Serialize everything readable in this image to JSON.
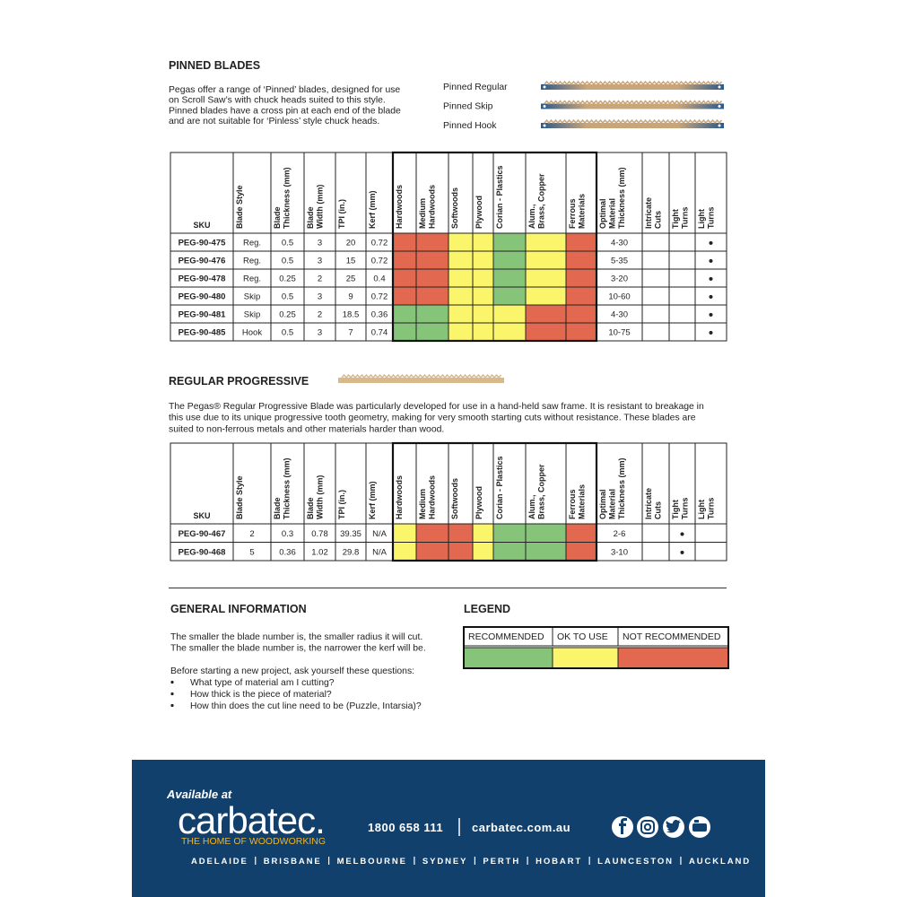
{
  "pinned": {
    "title": "PINNED BLADES",
    "text": [
      "Pegas offer a range of ‘Pinned’ blades, designed for use",
      "on Scroll Saw’s with chuck heads suited to this style.",
      "Pinned blades have a cross pin at each end of the blade",
      "and are not suitable for ‘Pinless’ style chuck heads."
    ],
    "blades": [
      "Pinned Regular",
      "Pinned Skip",
      "Pinned Hook"
    ]
  },
  "table1": {
    "header": [
      [
        "SKU"
      ],
      [
        "Blade Style"
      ],
      [
        "Blade",
        "Thickness (mm)"
      ],
      [
        "Blade",
        "Width (mm)"
      ],
      [
        "TPI (in.)"
      ],
      [
        "Kerf (mm)"
      ],
      [
        "Hardwoods"
      ],
      [
        "Medium",
        "Hardwoods"
      ],
      [
        "Softwoods"
      ],
      [
        "Plywood"
      ],
      [
        "Corian - Plastics"
      ],
      [
        "Alum.,",
        "Brass, Copper"
      ],
      [
        "Ferrous",
        "Materials"
      ],
      [
        "Optimal",
        "Material",
        "Thickness (mm)"
      ],
      [
        "Intricate",
        "Cuts"
      ],
      [
        "Tight",
        "Turns"
      ],
      [
        "Light",
        "Turns"
      ]
    ],
    "rows": [
      {
        "cells": [
          "PEG-90-475",
          "Reg.",
          0.5,
          3,
          20,
          0.72
        ],
        "ratings": [
          "#e2694f",
          "#e2694f",
          "#fbf56b",
          "#fbf56b",
          "#86c47a",
          "#fbf56b",
          "#e2694f"
        ],
        "more": [
          "4-30",
          null,
          null,
          "●"
        ]
      },
      {
        "cells": [
          "PEG-90-476",
          "Reg.",
          0.5,
          3,
          15,
          0.72
        ],
        "ratings": [
          "#e2694f",
          "#e2694f",
          "#fbf56b",
          "#fbf56b",
          "#86c47a",
          "#fbf56b",
          "#e2694f"
        ],
        "more": [
          "5-35",
          null,
          null,
          "●"
        ]
      },
      {
        "cells": [
          "PEG-90-478",
          "Reg.",
          0.25,
          2,
          25,
          0.4
        ],
        "ratings": [
          "#e2694f",
          "#e2694f",
          "#fbf56b",
          "#fbf56b",
          "#86c47a",
          "#fbf56b",
          "#e2694f"
        ],
        "more": [
          "3-20",
          null,
          null,
          "●"
        ]
      },
      {
        "cells": [
          "PEG-90-480",
          "Skip",
          0.5,
          3,
          9,
          0.72
        ],
        "ratings": [
          "#e2694f",
          "#e2694f",
          "#fbf56b",
          "#fbf56b",
          "#86c47a",
          "#fbf56b",
          "#e2694f"
        ],
        "more": [
          "10-60",
          null,
          null,
          "●"
        ]
      },
      {
        "cells": [
          "PEG-90-481",
          "Skip",
          0.25,
          2,
          18.5,
          0.36
        ],
        "ratings": [
          "#86c47a",
          "#86c47a",
          "#fbf56b",
          "#fbf56b",
          "#fbf56b",
          "#e2694f",
          "#e2694f"
        ],
        "more": [
          "4-30",
          null,
          null,
          "●"
        ]
      },
      {
        "cells": [
          "PEG-90-485",
          "Hook",
          0.5,
          3,
          7,
          0.74
        ],
        "ratings": [
          "#86c47a",
          "#86c47a",
          "#fbf56b",
          "#fbf56b",
          "#fbf56b",
          "#e2694f",
          "#e2694f"
        ],
        "more": [
          "10-75",
          null,
          null,
          "●"
        ]
      }
    ]
  },
  "progressive": {
    "title": "REGULAR PROGRESSIVE",
    "text": [
      "The Pegas® Regular Progressive Blade was particularly developed for use in a hand-held saw frame. It is resistant to breakage in",
      "this use due to its unique progressive tooth geometry, making for very smooth starting cuts without resistance. These blades are",
      "suited to non-ferrous metals and other materials harder than wood."
    ]
  },
  "table2": {
    "header": [
      [
        "SKU"
      ],
      [
        "Blade Style"
      ],
      [
        "Blade",
        "Thickness (mm)"
      ],
      [
        "Blade",
        "Width (mm)"
      ],
      [
        "TPI (in.)"
      ],
      [
        "Kerf (mm)"
      ],
      [
        "Hardwoods"
      ],
      [
        "Medium",
        "Hardwoods"
      ],
      [
        "Softwoods"
      ],
      [
        "Plywood"
      ],
      [
        "Corian - Plastics"
      ],
      [
        "Alum.,",
        "Brass, Copper"
      ],
      [
        "Ferrous",
        "Materials"
      ],
      [
        "Optimal",
        "Material",
        "Thickness (mm)"
      ],
      [
        "Intricate",
        "Cuts"
      ],
      [
        "Tight",
        "Turns"
      ],
      [
        "Light",
        "Turns"
      ]
    ],
    "rows": [
      {
        "cells": [
          "PEG-90-467",
          2,
          0.3,
          0.78,
          39.35,
          "N/A"
        ],
        "ratings": [
          "#fbf56b",
          "#e2694f",
          "#e2694f",
          "#fbf56b",
          "#86c47a",
          "#86c47a",
          "#e2694f"
        ],
        "more": [
          "2-6",
          null,
          "●",
          null
        ]
      },
      {
        "cells": [
          "PEG-90-468",
          5,
          0.36,
          1.02,
          29.8,
          "N/A"
        ],
        "ratings": [
          "#fbf56b",
          "#e2694f",
          "#e2694f",
          "#fbf56b",
          "#86c47a",
          "#86c47a",
          "#e2694f"
        ],
        "more": [
          "3-10",
          null,
          "●",
          null
        ]
      }
    ]
  },
  "general": {
    "title": "GENERAL INFORMATION",
    "lines": [
      "The smaller the blade number is, the smaller radius it will cut.",
      "The smaller the blade number is, the narrower the kerf will be."
    ],
    "intro": "Before starting a new project, ask yourself these questions:",
    "bullets": [
      "What type of material am I cutting?",
      "How thick is the piece of material?",
      "How thin does the cut line need to be (Puzzle, Intarsia)?"
    ]
  },
  "legend": {
    "title": "LEGEND",
    "items": [
      {
        "label": "RECOMMENDED",
        "color": "#86c47a"
      },
      {
        "label": "OK TO USE",
        "color": "#fbf56b"
      },
      {
        "label": "NOT RECOMMENDED",
        "color": "#e2694f"
      }
    ]
  },
  "footer": {
    "available": "Available at",
    "brand": "carbatec.",
    "tagline": "THE HOME OF WOODWORKING",
    "phone": "1800 658 111",
    "web": "carbatec.com.au",
    "cities": [
      "ADELAIDE",
      "BRISBANE",
      "MELBOURNE",
      "SYDNEY",
      "PERTH",
      "HOBART",
      "LAUNCESTON",
      "AUCKLAND"
    ]
  }
}
